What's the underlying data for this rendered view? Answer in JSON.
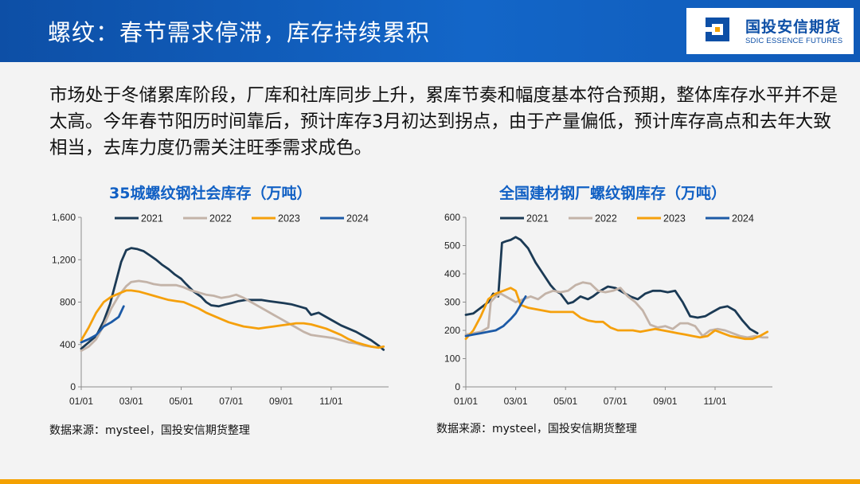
{
  "header": {
    "title": "螺纹：春节需求停滞，库存持续累积"
  },
  "logo": {
    "cn": "国投安信期货",
    "en": "SDIC ESSENCE FUTURES"
  },
  "summary": "市场处于冬储累库阶段，厂库和社库同步上升，累库节奏和幅度基本符合预期，整体库存水平并不是太高。今年春节阳历时间靠后，预计库存3月初达到拐点，由于产量偏低，预计库存高点和去年大致相当，去库力度仍需关注旺季需求成色。",
  "colors": {
    "2021": "#1b3a55",
    "2022": "#c3b3a8",
    "2023": "#f5a00c",
    "2024": "#1c5aa6",
    "accent": "#1160c4"
  },
  "chart_data": [
    {
      "type": "line",
      "title": "35城螺纹钢社会库存（万吨）",
      "source": "数据来源：mysteel，国投安信期货整理",
      "ylim": [
        0,
        1600
      ],
      "yticks": [
        0,
        400,
        800,
        1200,
        1600
      ],
      "ytick_labels": [
        "0",
        "400",
        "800",
        "1,200",
        "1,600"
      ],
      "xlim": [
        0,
        12.3
      ],
      "xticks": [
        0,
        2,
        4,
        6,
        8,
        10
      ],
      "xtick_labels": [
        "01/01",
        "03/01",
        "05/01",
        "07/01",
        "09/01",
        "11/01"
      ],
      "legend": "top",
      "series": [
        {
          "name": "2021",
          "x": [
            0,
            0.3,
            0.6,
            0.9,
            1.15,
            1.4,
            1.6,
            1.8,
            2.0,
            2.25,
            2.5,
            2.75,
            3.0,
            3.25,
            3.5,
            3.75,
            4.0,
            4.2,
            4.5,
            4.8,
            5.0,
            5.2,
            5.5,
            5.8,
            6.0,
            6.3,
            6.6,
            6.9,
            7.2,
            7.5,
            7.8,
            8.1,
            8.4,
            8.7,
            9.0,
            9.2,
            9.5,
            9.8,
            10.1,
            10.4,
            10.7,
            11.0,
            11.3,
            11.6,
            11.9,
            12.1
          ],
          "values": [
            360,
            420,
            480,
            620,
            780,
            1000,
            1180,
            1290,
            1310,
            1300,
            1280,
            1240,
            1200,
            1150,
            1110,
            1060,
            1020,
            970,
            900,
            850,
            800,
            770,
            760,
            780,
            790,
            810,
            820,
            820,
            820,
            810,
            800,
            790,
            780,
            760,
            740,
            680,
            700,
            660,
            620,
            580,
            550,
            520,
            480,
            440,
            390,
            350
          ]
        },
        {
          "name": "2022",
          "x": [
            0,
            0.3,
            0.6,
            0.9,
            1.2,
            1.5,
            1.8,
            2.0,
            2.3,
            2.6,
            2.9,
            3.2,
            3.5,
            3.8,
            4.1,
            4.4,
            4.7,
            5.0,
            5.3,
            5.6,
            5.9,
            6.2,
            6.5,
            6.8,
            7.1,
            7.4,
            7.7,
            8.0,
            8.3,
            8.6,
            8.9,
            9.2,
            9.5,
            9.8,
            10.1,
            10.4,
            10.7,
            11.0,
            11.3,
            11.6,
            11.9,
            12.1
          ],
          "values": [
            340,
            380,
            450,
            580,
            740,
            860,
            950,
            990,
            1000,
            990,
            970,
            960,
            960,
            960,
            940,
            910,
            890,
            870,
            860,
            840,
            850,
            870,
            840,
            800,
            760,
            720,
            680,
            640,
            600,
            560,
            520,
            490,
            480,
            470,
            460,
            440,
            420,
            410,
            390,
            380,
            370,
            380
          ]
        },
        {
          "name": "2023",
          "x": [
            0,
            0.3,
            0.6,
            0.9,
            1.2,
            1.5,
            1.8,
            2.0,
            2.3,
            2.6,
            2.9,
            3.2,
            3.5,
            3.8,
            4.1,
            4.4,
            4.7,
            5.0,
            5.3,
            5.6,
            5.9,
            6.2,
            6.5,
            6.8,
            7.1,
            7.4,
            7.7,
            8.0,
            8.3,
            8.6,
            8.9,
            9.2,
            9.5,
            9.8,
            10.1,
            10.4,
            10.7,
            11.0,
            11.3,
            11.6,
            11.9,
            12.1
          ],
          "values": [
            440,
            560,
            700,
            800,
            850,
            880,
            910,
            910,
            900,
            880,
            860,
            840,
            820,
            810,
            800,
            770,
            740,
            700,
            670,
            640,
            610,
            590,
            570,
            560,
            550,
            560,
            570,
            580,
            590,
            600,
            600,
            590,
            570,
            550,
            520,
            490,
            450,
            420,
            400,
            380,
            370,
            380
          ]
        },
        {
          "name": "2024",
          "x": [
            0,
            0.3,
            0.6,
            0.9,
            1.2,
            1.5,
            1.7
          ],
          "values": [
            420,
            450,
            490,
            570,
            610,
            660,
            760
          ]
        }
      ]
    },
    {
      "type": "line",
      "title": "全国建材钢厂螺纹钢库存（万吨）",
      "source": "数据来源：mysteel，国投安信期货整理",
      "ylim": [
        0,
        600
      ],
      "yticks": [
        0,
        100,
        200,
        300,
        400,
        500,
        600
      ],
      "ytick_labels": [
        "0",
        "100",
        "200",
        "300",
        "400",
        "500",
        "600"
      ],
      "xlim": [
        0,
        12.3
      ],
      "xticks": [
        0,
        2,
        4,
        6,
        8,
        10
      ],
      "xtick_labels": [
        "01/01",
        "03/01",
        "05/01",
        "07/01",
        "09/01",
        "11/01"
      ],
      "legend": "top",
      "series": [
        {
          "name": "2021",
          "x": [
            0,
            0.3,
            0.6,
            0.9,
            1.1,
            1.3,
            1.45,
            1.6,
            1.8,
            2.0,
            2.2,
            2.5,
            2.8,
            3.1,
            3.4,
            3.6,
            3.8,
            4.1,
            4.3,
            4.6,
            4.9,
            5.1,
            5.4,
            5.7,
            6.0,
            6.3,
            6.6,
            6.9,
            7.2,
            7.5,
            7.8,
            8.1,
            8.4,
            8.7,
            9.0,
            9.3,
            9.6,
            9.9,
            10.2,
            10.5,
            10.8,
            11.1,
            11.4,
            11.7
          ],
          "values": [
            255,
            260,
            280,
            300,
            330,
            320,
            510,
            515,
            520,
            530,
            520,
            490,
            440,
            400,
            360,
            340,
            330,
            295,
            300,
            320,
            310,
            320,
            340,
            355,
            350,
            335,
            320,
            310,
            330,
            340,
            340,
            335,
            340,
            300,
            250,
            245,
            250,
            265,
            280,
            285,
            270,
            235,
            205,
            190
          ]
        },
        {
          "name": "2022",
          "x": [
            0,
            0.3,
            0.6,
            0.9,
            1.0,
            1.2,
            1.4,
            1.6,
            1.8,
            2.0,
            2.3,
            2.6,
            2.9,
            3.2,
            3.5,
            3.8,
            4.1,
            4.4,
            4.7,
            5.0,
            5.3,
            5.6,
            5.9,
            6.2,
            6.5,
            6.8,
            7.1,
            7.4,
            7.7,
            8.0,
            8.3,
            8.6,
            8.9,
            9.2,
            9.5,
            9.8,
            10.1,
            10.4,
            10.7,
            11.0,
            11.3,
            11.6,
            11.9,
            12.1
          ],
          "values": [
            185,
            190,
            195,
            210,
            300,
            320,
            330,
            320,
            310,
            300,
            310,
            320,
            310,
            330,
            340,
            335,
            340,
            360,
            370,
            365,
            340,
            335,
            340,
            350,
            320,
            300,
            270,
            220,
            210,
            215,
            205,
            225,
            225,
            215,
            180,
            200,
            205,
            200,
            190,
            180,
            175,
            180,
            175,
            175
          ]
        },
        {
          "name": "2023",
          "x": [
            0,
            0.3,
            0.6,
            0.9,
            1.2,
            1.5,
            1.8,
            2.0,
            2.2,
            2.5,
            2.8,
            3.1,
            3.4,
            3.7,
            4.0,
            4.3,
            4.6,
            4.9,
            5.2,
            5.5,
            5.8,
            6.1,
            6.4,
            6.7,
            7.0,
            7.3,
            7.6,
            7.9,
            8.2,
            8.5,
            8.8,
            9.1,
            9.4,
            9.7,
            10.0,
            10.3,
            10.6,
            10.9,
            11.2,
            11.5,
            11.8,
            12.1
          ],
          "values": [
            170,
            200,
            250,
            310,
            330,
            340,
            350,
            340,
            290,
            280,
            275,
            270,
            265,
            265,
            265,
            265,
            245,
            235,
            230,
            230,
            210,
            200,
            200,
            200,
            195,
            200,
            205,
            200,
            195,
            190,
            185,
            180,
            175,
            180,
            200,
            190,
            180,
            175,
            170,
            170,
            180,
            195
          ]
        },
        {
          "name": "2024",
          "x": [
            0,
            0.3,
            0.6,
            0.9,
            1.2,
            1.5,
            1.8,
            2.0,
            2.2,
            2.4
          ],
          "values": [
            180,
            185,
            190,
            195,
            200,
            215,
            240,
            260,
            290,
            320
          ]
        }
      ]
    }
  ]
}
